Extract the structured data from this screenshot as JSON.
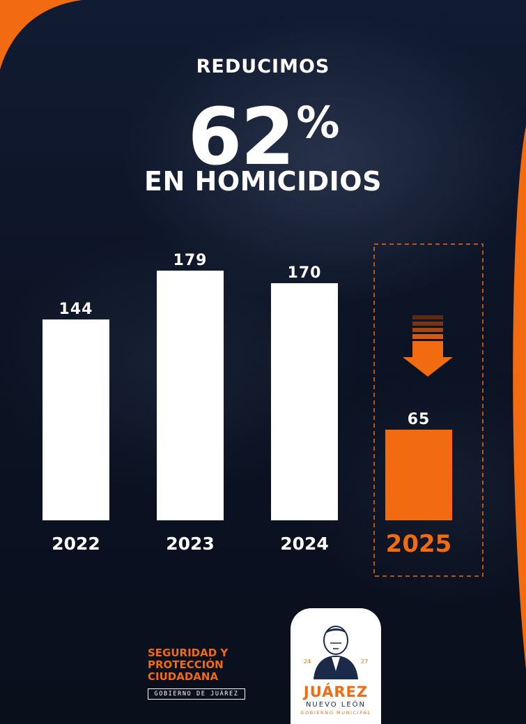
{
  "headline": {
    "kicker": "REDUCIMOS",
    "big": "62",
    "pct": "%",
    "sub": "EN HOMICIDIOS"
  },
  "chart_data": {
    "type": "bar",
    "categories": [
      "2022",
      "2023",
      "2024",
      "2025"
    ],
    "values": [
      144,
      179,
      170,
      65
    ],
    "highlight_index": 3,
    "colors": {
      "default": "#ffffff",
      "highlight": "#f26b11"
    },
    "title": "",
    "xlabel": "",
    "ylabel": "",
    "ylim": [
      0,
      190
    ]
  },
  "footer": {
    "dept_lines": [
      "SEGURIDAD Y",
      "PROTECCIÓN",
      "CIUDADANA"
    ],
    "dept_tag": "GOBIERNO DE JUÁREZ",
    "seal_year_left": "24",
    "seal_year_right": "27",
    "seal_title": "JUÁREZ",
    "seal_sub": "NUEVO LEÓN",
    "seal_tag": "GOBIERNO MUNICIPAL"
  },
  "colors": {
    "accent": "#f26b11",
    "background": "#0d1526",
    "text": "#ffffff"
  }
}
